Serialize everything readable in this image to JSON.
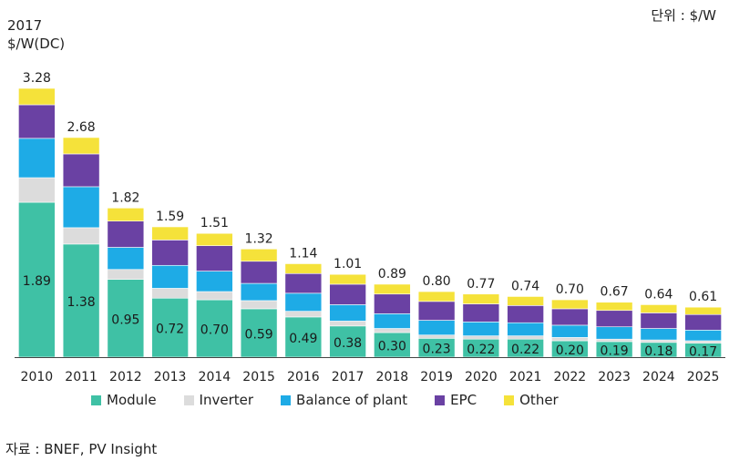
{
  "unit_note": "단위 : $/W",
  "source_note": "자료 : BNEF, PV Insight",
  "chart_data": {
    "type": "bar",
    "stacked": true,
    "title": "",
    "ylabel_line1": "2017",
    "ylabel_line2": "$/W(DC)",
    "categories": [
      "2010",
      "2011",
      "2012",
      "2013",
      "2014",
      "2015",
      "2016",
      "2017",
      "2018",
      "2019",
      "2020",
      "2021",
      "2022",
      "2023",
      "2024",
      "2025"
    ],
    "totals": [
      3.28,
      2.68,
      1.82,
      1.59,
      1.51,
      1.32,
      1.14,
      1.01,
      0.89,
      0.8,
      0.77,
      0.74,
      0.7,
      0.67,
      0.64,
      0.61
    ],
    "module_labels": [
      "1.89",
      "1.38",
      "0.95",
      "0.72",
      "0.70",
      "0.59",
      "0.49",
      "0.38",
      "0.30",
      "0.23",
      "0.22",
      "0.22",
      "0.20",
      "0.19",
      "0.18",
      "0.17"
    ],
    "total_labels": [
      "3.28",
      "2.68",
      "1.82",
      "1.59",
      "1.51",
      "1.32",
      "1.14",
      "1.01",
      "0.89",
      "0.80",
      "0.77",
      "0.74",
      "0.70",
      "0.67",
      "0.64",
      "0.61"
    ],
    "series": [
      {
        "name": "Module",
        "color": "#3fc1a5",
        "values": [
          1.89,
          1.38,
          0.95,
          0.72,
          0.7,
          0.59,
          0.49,
          0.38,
          0.3,
          0.23,
          0.22,
          0.22,
          0.2,
          0.19,
          0.18,
          0.17
        ]
      },
      {
        "name": "Inverter",
        "color": "#dcdcdc",
        "values": [
          0.3,
          0.2,
          0.12,
          0.12,
          0.1,
          0.1,
          0.07,
          0.06,
          0.05,
          0.04,
          0.04,
          0.04,
          0.04,
          0.03,
          0.03,
          0.03
        ]
      },
      {
        "name": "Balance of plant",
        "color": "#1eabe6",
        "values": [
          0.48,
          0.5,
          0.27,
          0.28,
          0.25,
          0.21,
          0.22,
          0.2,
          0.18,
          0.18,
          0.17,
          0.16,
          0.15,
          0.15,
          0.14,
          0.13
        ]
      },
      {
        "name": "EPC",
        "color": "#6a41a3",
        "values": [
          0.41,
          0.4,
          0.32,
          0.31,
          0.31,
          0.27,
          0.24,
          0.25,
          0.24,
          0.23,
          0.22,
          0.21,
          0.2,
          0.2,
          0.19,
          0.19
        ]
      },
      {
        "name": "Other",
        "color": "#f5e23a",
        "values": [
          0.2,
          0.2,
          0.16,
          0.16,
          0.15,
          0.15,
          0.12,
          0.12,
          0.12,
          0.12,
          0.12,
          0.11,
          0.11,
          0.1,
          0.1,
          0.09
        ]
      }
    ],
    "ylim": [
      0,
      3.3
    ],
    "grid": false,
    "legend_position": "bottom"
  }
}
